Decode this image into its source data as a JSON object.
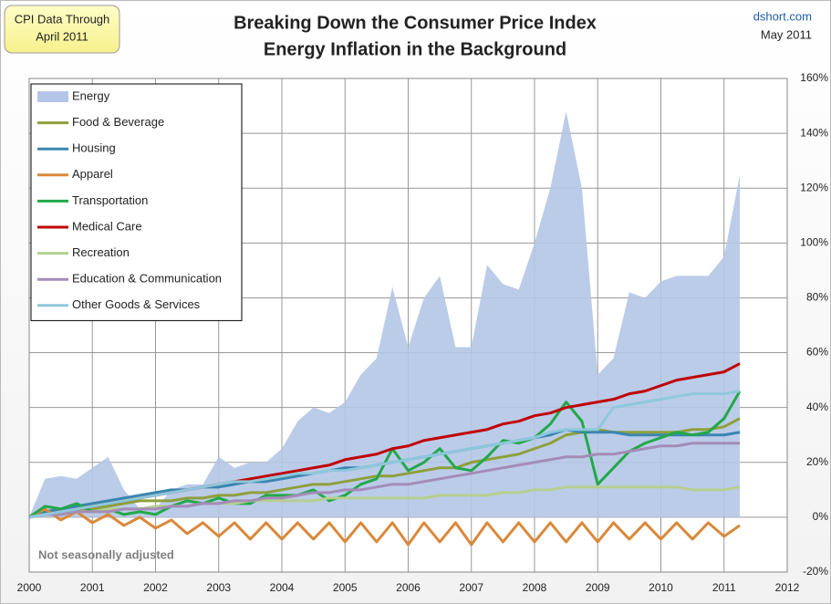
{
  "chart_data": {
    "type": "line",
    "title_lines": [
      "Breaking Down the Consumer Price Index",
      "Energy Inflation in the Background"
    ],
    "box_lines": [
      "CPI Data Through",
      "April 2011"
    ],
    "source": "dshort.com",
    "date": "May 2011",
    "note": "Not seasonally adjusted",
    "xlim": [
      2000,
      2012
    ],
    "xticks": [
      2000,
      2001,
      2002,
      2003,
      2004,
      2005,
      2006,
      2007,
      2008,
      2009,
      2010,
      2011,
      2012
    ],
    "ylim": [
      -20,
      160
    ],
    "yticks": [
      {
        "value": -20,
        "label": "-20%"
      },
      {
        "value": 0,
        "label": "0%"
      },
      {
        "value": 20,
        "label": "20%"
      },
      {
        "value": 40,
        "label": "40%"
      },
      {
        "value": 60,
        "label": "60%"
      },
      {
        "value": 80,
        "label": "80%"
      },
      {
        "value": 100,
        "label": "100%"
      },
      {
        "value": 120,
        "label": "120%"
      },
      {
        "value": 140,
        "label": "140%"
      },
      {
        "value": 160,
        "label": "160%"
      }
    ],
    "grid": true,
    "y_axis_side": "right",
    "legend": "upper left",
    "x": [
      2000,
      2000.25,
      2000.5,
      2000.75,
      2001,
      2001.25,
      2001.5,
      2001.75,
      2002,
      2002.25,
      2002.5,
      2002.75,
      2003,
      2003.25,
      2003.5,
      2003.75,
      2004,
      2004.25,
      2004.5,
      2004.75,
      2005,
      2005.25,
      2005.5,
      2005.75,
      2006,
      2006.25,
      2006.5,
      2006.75,
      2007,
      2007.25,
      2007.5,
      2007.75,
      2008,
      2008.25,
      2008.5,
      2008.75,
      2009,
      2009.25,
      2009.5,
      2009.75,
      2010,
      2010.25,
      2010.5,
      2010.75,
      2011,
      2011.25
    ],
    "series": [
      {
        "name": "Energy",
        "color": "#b4c6e7",
        "style": "area",
        "values": [
          0,
          14,
          15,
          14,
          18,
          22,
          10,
          3,
          3,
          10,
          12,
          12,
          22,
          18,
          20,
          20,
          25,
          35,
          40,
          38,
          42,
          52,
          58,
          84,
          62,
          80,
          88,
          62,
          62,
          92,
          85,
          83,
          100,
          120,
          148,
          120,
          52,
          58,
          82,
          80,
          86,
          88,
          88,
          88,
          95,
          125
        ]
      },
      {
        "name": "Food & Beverage",
        "color": "#8ea03c",
        "style": "line",
        "values": [
          0,
          1,
          2,
          2,
          3,
          4,
          5,
          6,
          6,
          6,
          7,
          7,
          8,
          8,
          9,
          9,
          10,
          11,
          12,
          12,
          13,
          14,
          15,
          15,
          16,
          17,
          18,
          18,
          20,
          21,
          22,
          23,
          25,
          27,
          30,
          31,
          32,
          31,
          31,
          31,
          31,
          31,
          32,
          32,
          33,
          36
        ]
      },
      {
        "name": "Housing",
        "color": "#3a86b0",
        "style": "line",
        "values": [
          0,
          2,
          3,
          4,
          5,
          6,
          7,
          8,
          9,
          10,
          10,
          11,
          11,
          12,
          13,
          13,
          14,
          15,
          16,
          17,
          18,
          18,
          19,
          20,
          21,
          22,
          23,
          24,
          25,
          26,
          27,
          28,
          29,
          30,
          32,
          31,
          31,
          31,
          30,
          30,
          30,
          30,
          30,
          30,
          30,
          31
        ]
      },
      {
        "name": "Apparel",
        "color": "#d9893a",
        "style": "line",
        "values": [
          0,
          3,
          -1,
          2,
          -2,
          1,
          -3,
          0,
          -4,
          -1,
          -6,
          -2,
          -7,
          -2,
          -8,
          -2,
          -8,
          -2,
          -8,
          -2,
          -9,
          -2,
          -9,
          -2,
          -10,
          -2,
          -9,
          -2,
          -10,
          -2,
          -9,
          -2,
          -9,
          -2,
          -9,
          -2,
          -9,
          -2,
          -8,
          -2,
          -8,
          -2,
          -8,
          -2,
          -7,
          -3
        ]
      },
      {
        "name": "Transportation",
        "color": "#22a84a",
        "style": "line",
        "values": [
          0,
          4,
          3,
          5,
          2,
          3,
          1,
          2,
          1,
          4,
          6,
          5,
          7,
          5,
          5,
          8,
          8,
          8,
          10,
          6,
          8,
          12,
          14,
          25,
          17,
          20,
          25,
          18,
          17,
          22,
          28,
          27,
          29,
          34,
          42,
          35,
          12,
          18,
          24,
          27,
          29,
          31,
          30,
          31,
          36,
          46
        ]
      },
      {
        "name": "Medical Care",
        "color": "#c00000",
        "style": "line",
        "values": [
          0,
          1,
          2,
          3,
          4,
          5,
          6,
          7,
          8,
          9,
          10,
          11,
          12,
          13,
          14,
          15,
          16,
          17,
          18,
          19,
          21,
          22,
          23,
          25,
          26,
          28,
          29,
          30,
          31,
          32,
          34,
          35,
          37,
          38,
          40,
          41,
          42,
          43,
          45,
          46,
          48,
          50,
          51,
          52,
          53,
          56
        ]
      },
      {
        "name": "Recreation",
        "color": "#b6cf8f",
        "style": "line",
        "values": [
          0,
          1,
          1,
          2,
          2,
          3,
          3,
          3,
          4,
          4,
          4,
          5,
          5,
          5,
          6,
          6,
          6,
          6,
          6,
          7,
          7,
          7,
          7,
          7,
          7,
          7,
          8,
          8,
          8,
          8,
          9,
          9,
          10,
          10,
          11,
          11,
          11,
          11,
          11,
          11,
          11,
          11,
          10,
          10,
          10,
          11
        ]
      },
      {
        "name": "Education & Communication",
        "color": "#a48cb8",
        "style": "line",
        "values": [
          0,
          1,
          1,
          2,
          2,
          2,
          3,
          3,
          3,
          4,
          4,
          5,
          5,
          6,
          6,
          7,
          7,
          8,
          9,
          9,
          10,
          10,
          11,
          12,
          12,
          13,
          14,
          15,
          16,
          17,
          18,
          19,
          20,
          21,
          22,
          22,
          23,
          23,
          24,
          25,
          26,
          26,
          27,
          27,
          27,
          27
        ]
      },
      {
        "name": "Other Goods & Services",
        "color": "#8ec8dc",
        "style": "line",
        "values": [
          0,
          1,
          2,
          3,
          4,
          5,
          6,
          7,
          8,
          9,
          10,
          11,
          12,
          13,
          13,
          14,
          15,
          16,
          16,
          17,
          17,
          18,
          19,
          20,
          21,
          22,
          23,
          24,
          25,
          26,
          27,
          28,
          29,
          31,
          32,
          32,
          32,
          40,
          41,
          42,
          43,
          44,
          45,
          45,
          45,
          46
        ]
      }
    ]
  }
}
